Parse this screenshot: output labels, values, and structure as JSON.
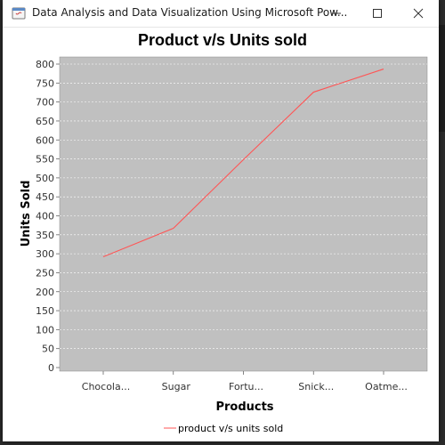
{
  "window": {
    "title": "Data Analysis and Data Visualization Using Microsoft Pow..."
  },
  "colors": {
    "plot_background": "#c0c0c0",
    "series_line": "#ff5555",
    "grid": "#ffffff"
  },
  "chart_data": {
    "type": "line",
    "title": "Product v/s Units sold",
    "xlabel": "Products",
    "ylabel": "Units Sold",
    "categories": [
      "Chocola...",
      "Sugar",
      "Fortu...",
      "Snick...",
      "Oatme..."
    ],
    "series": [
      {
        "name": "product v/s units sold",
        "values": [
          292,
          367,
          548,
          726,
          787
        ]
      }
    ],
    "ylim": [
      0,
      825
    ],
    "yticks": [
      0,
      50,
      100,
      150,
      200,
      250,
      300,
      350,
      400,
      450,
      500,
      550,
      600,
      650,
      700,
      750,
      800
    ],
    "grid": true,
    "legend_position": "bottom"
  }
}
